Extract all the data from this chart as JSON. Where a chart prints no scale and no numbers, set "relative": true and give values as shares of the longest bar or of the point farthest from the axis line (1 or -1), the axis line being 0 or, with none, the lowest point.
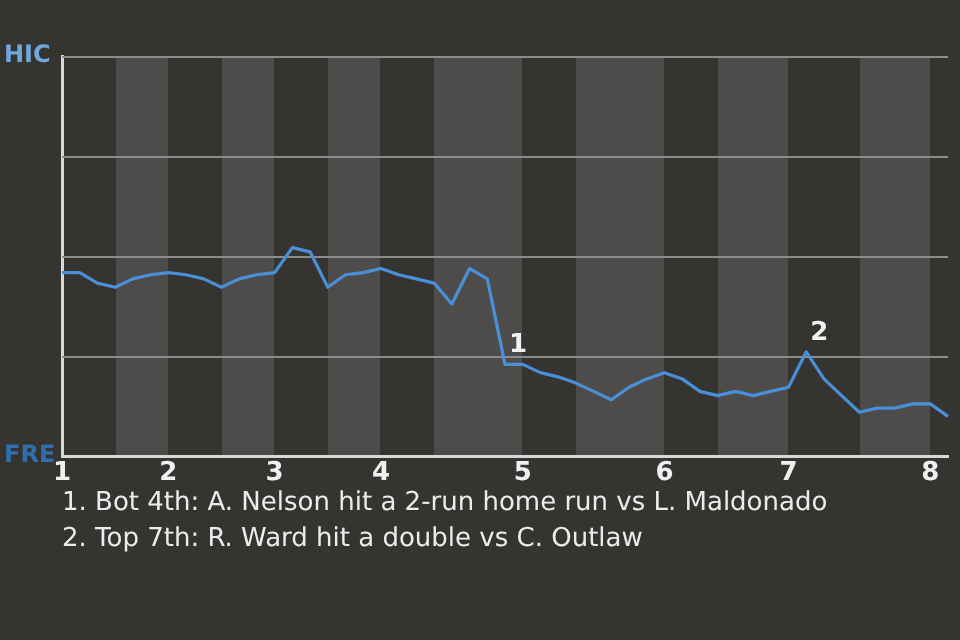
{
  "chart_data": {
    "type": "line",
    "relative": true,
    "categories": [
      "1",
      null,
      null,
      null,
      null,
      null,
      "2",
      null,
      null,
      null,
      null,
      null,
      "3",
      null,
      null,
      null,
      null,
      null,
      "4",
      null,
      null,
      null,
      null,
      null,
      null,
      null,
      "5",
      null,
      null,
      null,
      null,
      null,
      null,
      null,
      "6",
      null,
      null,
      null,
      null,
      null,
      null,
      "7",
      null,
      null,
      null,
      null,
      null,
      null,
      null,
      "8",
      null
    ],
    "series": [
      {
        "color": "#4a90d9",
        "values": [
          0.88,
          0.88,
          0.83,
          0.81,
          0.85,
          0.87,
          0.88,
          0.87,
          0.85,
          0.81,
          0.85,
          0.87,
          0.88,
          1,
          0.98,
          0.81,
          0.87,
          0.88,
          0.9,
          0.87,
          0.85,
          0.83,
          0.73,
          0.9,
          0.85,
          0.44,
          0.44,
          0.4,
          0.38,
          0.35,
          0.31,
          0.27,
          0.33,
          0.37,
          0.4,
          0.37,
          0.31,
          0.29,
          0.31,
          0.29,
          0.31,
          0.33,
          0.5,
          0.37,
          0.29,
          0.21,
          0.23,
          0.23,
          0.25,
          0.25,
          0.19
        ]
      }
    ],
    "ref_lines": [
      {
        "axis": "y",
        "value": 0.48,
        "color": "#8c8c8c"
      },
      {
        "axis": "y",
        "value": 0.96,
        "color": "#8c8c8c"
      },
      {
        "axis": "y",
        "value": 1.44,
        "color": "#8c8c8c"
      },
      {
        "axis": "y",
        "value": 1.92,
        "color": "#8c8c8c"
      }
    ],
    "legend": false,
    "marker": "none",
    "line_style": "solid",
    "annotations": [
      {
        "text": "1",
        "y": 0.44
      },
      {
        "text": "2",
        "y": 0.5
      },
      "HIC",
      "FRE",
      "1. Bot 4th: A. Nelson hit a 2-run home run vs L. Maldonado",
      "2. Top 7th: R. Ward hit a double vs C. Outlaw"
    ]
  }
}
